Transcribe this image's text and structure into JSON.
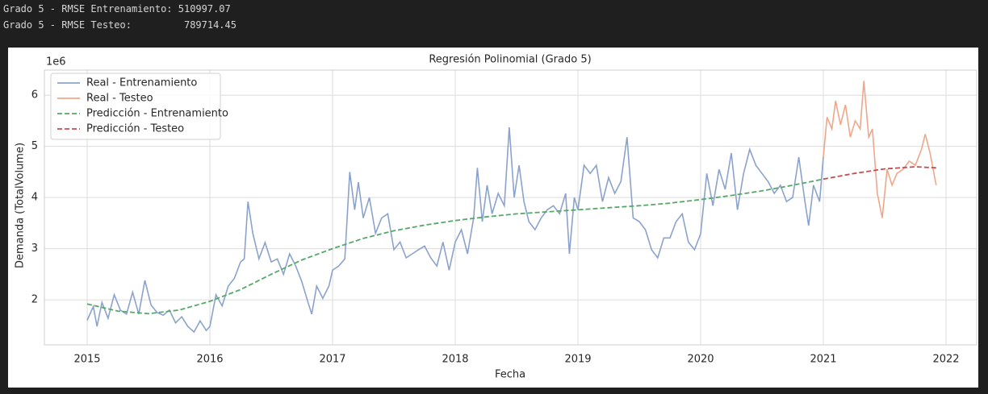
{
  "console_output": [
    "Grado 5 - RMSE Entrenamiento: 510997.07",
    "Grado 5 - RMSE Testeo:         789714.45"
  ],
  "chart_data": {
    "type": "line",
    "title": "Regresión Polinomial (Grado 5)",
    "x_label": "Fecha",
    "y_label": "Demanda (TotalVolume)",
    "y_offset_label": "1e6",
    "xlim": [
      2014.651,
      2022.25
    ],
    "xticks": [
      2015,
      2016,
      2017,
      2018,
      2019,
      2020,
      2021,
      2022
    ],
    "ylim": [
      1.12,
      6.49
    ],
    "yticks": [
      2,
      3,
      4,
      5,
      6
    ],
    "grid": true,
    "legend": "upper left",
    "series": [
      {
        "name": "Real - Entrenamiento",
        "color": "#8ba3cc",
        "linestyle": "solid",
        "x": [
          2015.0,
          2015.05,
          2015.08,
          2015.12,
          2015.17,
          2015.22,
          2015.27,
          2015.32,
          2015.37,
          2015.42,
          2015.47,
          2015.52,
          2015.57,
          2015.62,
          2015.67,
          2015.72,
          2015.77,
          2015.82,
          2015.87,
          2015.92,
          2015.97,
          2016.0,
          2016.05,
          2016.1,
          2016.15,
          2016.2,
          2016.25,
          2016.28,
          2016.31,
          2016.35,
          2016.4,
          2016.45,
          2016.5,
          2016.55,
          2016.6,
          2016.65,
          2016.7,
          2016.75,
          2016.8,
          2016.83,
          2016.87,
          2016.92,
          2016.97,
          2017.0,
          2017.05,
          2017.1,
          2017.14,
          2017.18,
          2017.21,
          2017.25,
          2017.3,
          2017.35,
          2017.4,
          2017.45,
          2017.5,
          2017.55,
          2017.6,
          2017.65,
          2017.7,
          2017.75,
          2017.8,
          2017.85,
          2017.9,
          2017.95,
          2018.0,
          2018.05,
          2018.1,
          2018.15,
          2018.18,
          2018.22,
          2018.26,
          2018.3,
          2018.35,
          2018.4,
          2018.44,
          2018.48,
          2018.52,
          2018.56,
          2018.6,
          2018.65,
          2018.7,
          2018.75,
          2018.8,
          2018.85,
          2018.9,
          2018.93,
          2018.97,
          2019.0,
          2019.05,
          2019.1,
          2019.15,
          2019.2,
          2019.25,
          2019.3,
          2019.35,
          2019.4,
          2019.45,
          2019.5,
          2019.55,
          2019.6,
          2019.65,
          2019.7,
          2019.75,
          2019.8,
          2019.85,
          2019.9,
          2019.95,
          2020.0,
          2020.05,
          2020.1,
          2020.15,
          2020.2,
          2020.25,
          2020.3,
          2020.35,
          2020.4,
          2020.45,
          2020.5,
          2020.55,
          2020.6,
          2020.65,
          2020.7,
          2020.75,
          2020.8,
          2020.85,
          2020.88,
          2020.92,
          2020.97,
          2021.0
        ],
        "values": [
          1.6,
          1.87,
          1.48,
          1.95,
          1.64,
          2.1,
          1.8,
          1.72,
          2.15,
          1.72,
          2.38,
          1.9,
          1.75,
          1.7,
          1.8,
          1.55,
          1.67,
          1.48,
          1.37,
          1.59,
          1.4,
          1.48,
          2.1,
          1.88,
          2.27,
          2.42,
          2.74,
          2.8,
          3.92,
          3.3,
          2.8,
          3.12,
          2.74,
          2.8,
          2.5,
          2.9,
          2.66,
          2.35,
          1.95,
          1.72,
          2.27,
          2.03,
          2.27,
          2.58,
          2.66,
          2.8,
          4.5,
          3.76,
          4.3,
          3.6,
          4.0,
          3.3,
          3.6,
          3.68,
          2.98,
          3.13,
          2.82,
          2.9,
          2.98,
          3.05,
          2.82,
          2.66,
          3.13,
          2.58,
          3.13,
          3.37,
          2.9,
          3.6,
          4.58,
          3.53,
          4.24,
          3.68,
          4.08,
          3.84,
          5.37,
          4.0,
          4.63,
          3.92,
          3.53,
          3.37,
          3.6,
          3.76,
          3.84,
          3.68,
          4.08,
          2.9,
          4.0,
          3.76,
          4.63,
          4.47,
          4.63,
          3.92,
          4.39,
          4.08,
          4.31,
          5.18,
          3.6,
          3.53,
          3.37,
          2.98,
          2.82,
          3.21,
          3.21,
          3.53,
          3.68,
          3.13,
          2.98,
          3.29,
          4.47,
          3.84,
          4.55,
          4.16,
          4.87,
          3.76,
          4.47,
          4.94,
          4.63,
          4.47,
          4.31,
          4.08,
          4.24,
          3.92,
          4.0,
          4.79,
          3.92,
          3.45,
          4.24,
          3.92,
          4.79
        ]
      },
      {
        "name": "Real - Testeo",
        "color": "#eea78a",
        "linestyle": "solid",
        "x": [
          2021.0,
          2021.03,
          2021.07,
          2021.1,
          2021.14,
          2021.18,
          2021.22,
          2021.26,
          2021.3,
          2021.33,
          2021.37,
          2021.4,
          2021.44,
          2021.48,
          2021.52,
          2021.56,
          2021.6,
          2021.65,
          2021.7,
          2021.75,
          2021.8,
          2021.83,
          2021.87,
          2021.92
        ],
        "values": [
          4.79,
          5.57,
          5.34,
          5.89,
          5.42,
          5.81,
          5.18,
          5.5,
          5.34,
          6.28,
          5.18,
          5.34,
          4.08,
          3.6,
          4.55,
          4.24,
          4.47,
          4.55,
          4.71,
          4.63,
          4.94,
          5.24,
          4.87,
          4.24
        ]
      },
      {
        "name": "Predicción - Entrenamiento",
        "color": "#55a868",
        "linestyle": "dashed",
        "x": [
          2015.0,
          2015.25,
          2015.5,
          2015.75,
          2016.0,
          2016.25,
          2016.5,
          2016.75,
          2017.0,
          2017.25,
          2017.5,
          2017.75,
          2018.0,
          2018.25,
          2018.5,
          2018.75,
          2019.0,
          2019.25,
          2019.5,
          2019.75,
          2020.0,
          2020.25,
          2020.5,
          2020.75,
          2021.0
        ],
        "values": [
          1.92,
          1.78,
          1.73,
          1.8,
          1.97,
          2.2,
          2.5,
          2.78,
          3.0,
          3.2,
          3.35,
          3.46,
          3.55,
          3.62,
          3.68,
          3.72,
          3.76,
          3.8,
          3.84,
          3.89,
          3.96,
          4.04,
          4.13,
          4.24,
          4.36
        ]
      },
      {
        "name": "Predicción - Testeo",
        "color": "#c44e52",
        "linestyle": "dashed",
        "x": [
          2021.0,
          2021.25,
          2021.5,
          2021.75,
          2021.92
        ],
        "values": [
          4.36,
          4.47,
          4.56,
          4.6,
          4.58
        ]
      }
    ]
  }
}
